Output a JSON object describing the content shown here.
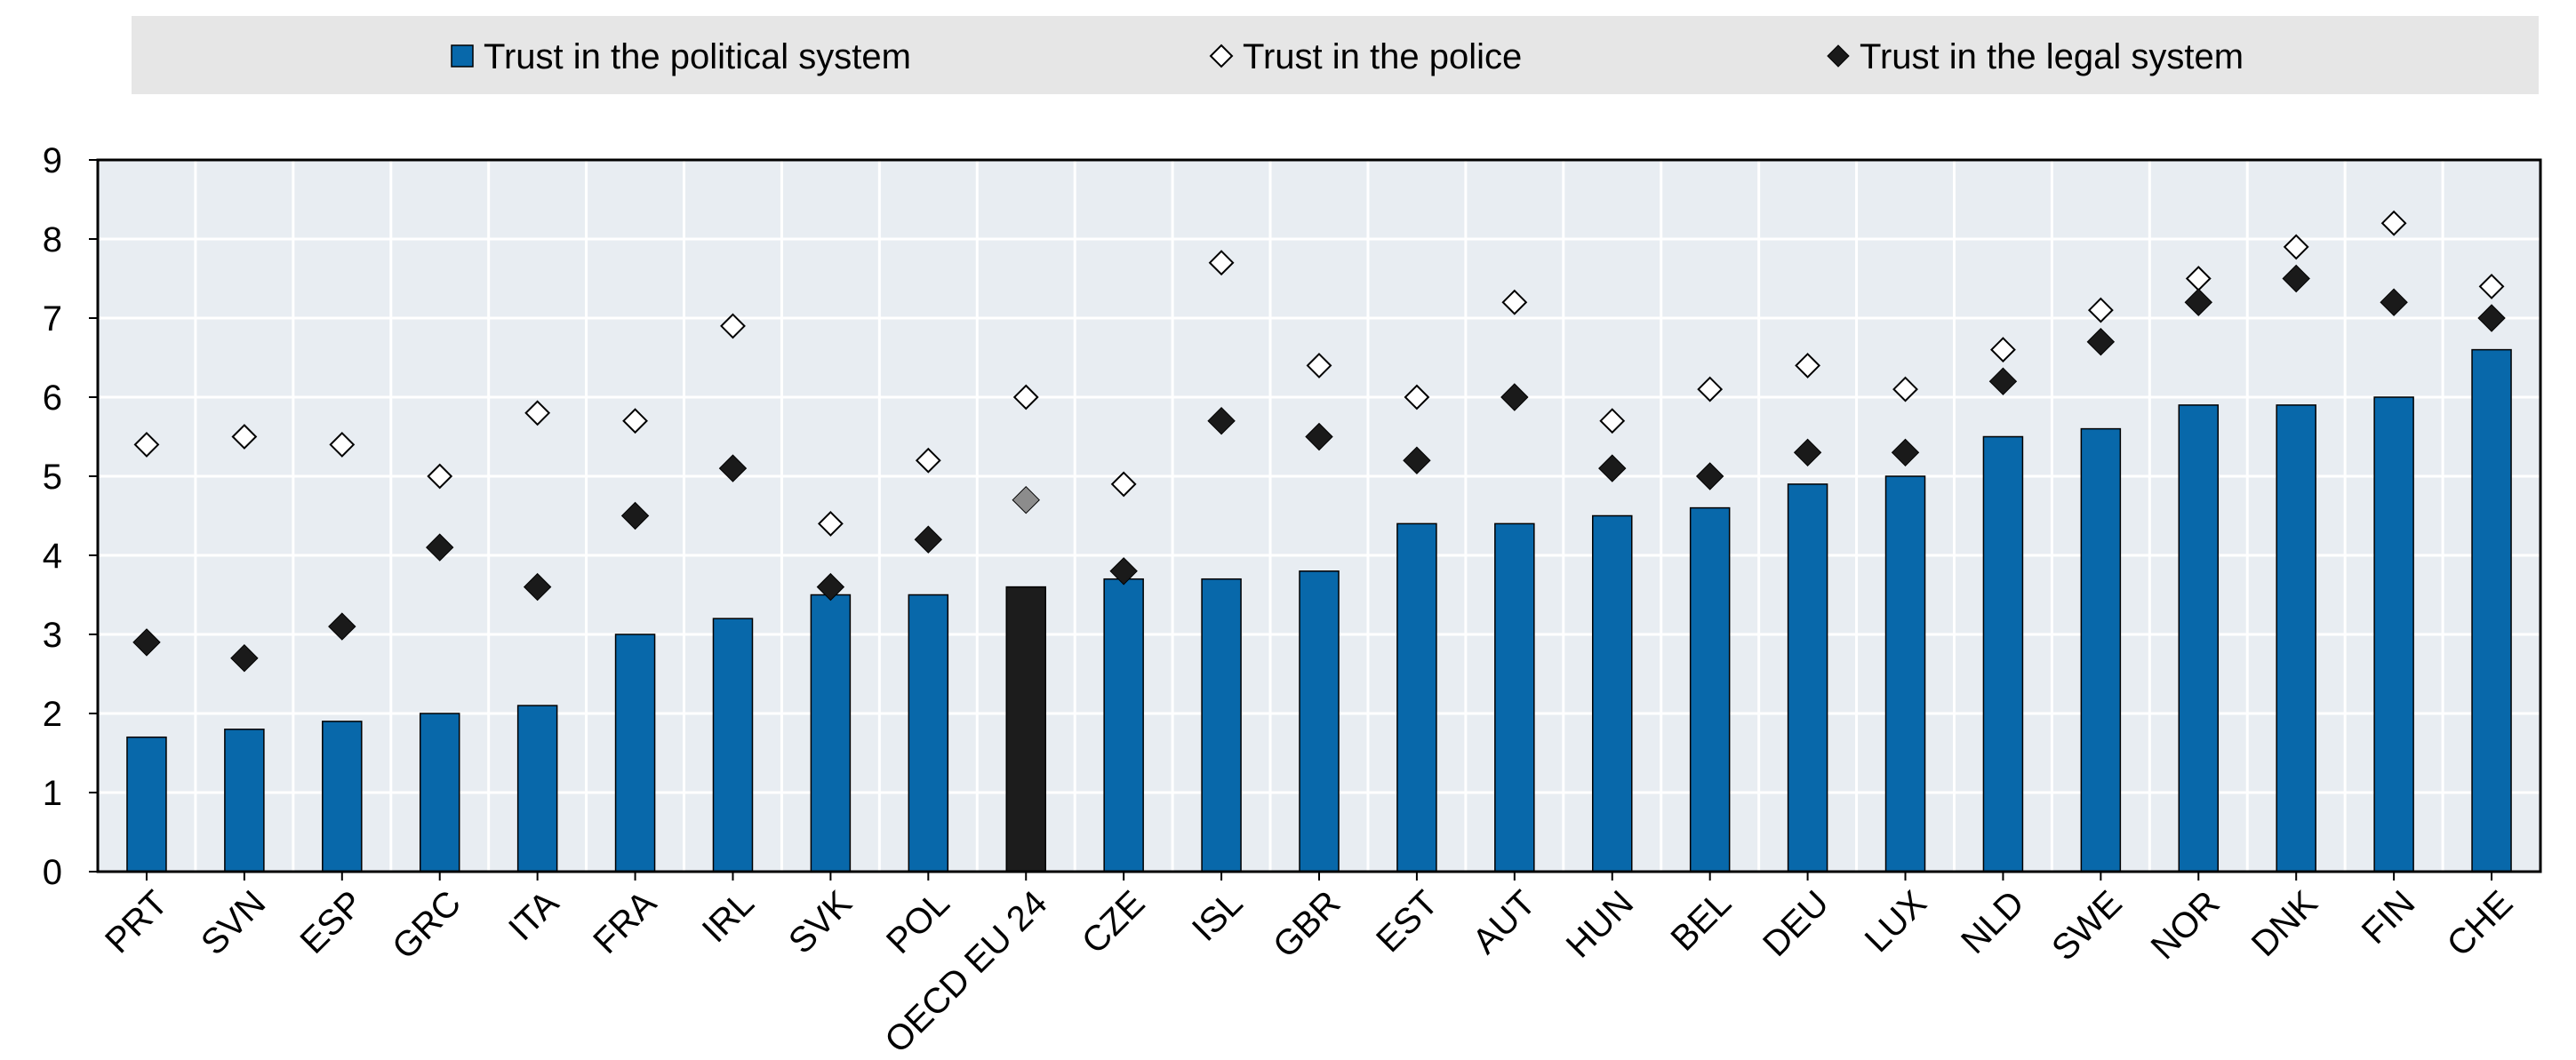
{
  "chart_data": {
    "type": "bar",
    "title": "",
    "xlabel": "",
    "ylabel": "",
    "ylim": [
      0,
      9
    ],
    "yticks": [
      "0",
      "1",
      "2",
      "3",
      "4",
      "5",
      "6",
      "7",
      "8",
      "9"
    ],
    "grid": true,
    "legend_position": "top",
    "categories": [
      "PRT",
      "SVN",
      "ESP",
      "GRC",
      "ITA",
      "FRA",
      "IRL",
      "SVK",
      "POL",
      "OECD EU 24",
      "CZE",
      "ISL",
      "GBR",
      "EST",
      "AUT",
      "HUN",
      "BEL",
      "DEU",
      "LUX",
      "NLD",
      "SWE",
      "NOR",
      "DNK",
      "FIN",
      "CHE"
    ],
    "highlight_category": "OECD EU 24",
    "series": [
      {
        "name": "Trust in the political system",
        "kind": "bar",
        "marker": "square",
        "color": "#0868aa",
        "highlight_color": "#1c1c1c",
        "values": [
          1.7,
          1.8,
          1.9,
          2.0,
          2.1,
          3.0,
          3.2,
          3.5,
          3.5,
          3.6,
          3.7,
          3.7,
          3.8,
          4.4,
          4.4,
          4.5,
          4.6,
          4.9,
          5.0,
          5.5,
          5.6,
          5.9,
          5.9,
          6.0,
          6.6
        ]
      },
      {
        "name": "Trust in the police",
        "kind": "marker",
        "marker": "diamond-open",
        "color": "#000000",
        "highlight_color": "#000000",
        "values": [
          5.4,
          5.5,
          5.4,
          5.0,
          5.8,
          5.7,
          6.9,
          4.4,
          5.2,
          6.0,
          4.9,
          7.7,
          6.4,
          6.0,
          7.2,
          5.7,
          6.1,
          6.4,
          6.1,
          6.6,
          7.1,
          7.5,
          7.9,
          8.2,
          7.4
        ]
      },
      {
        "name": "Trust in the legal system",
        "kind": "marker",
        "marker": "diamond-filled",
        "color": "#1a1a1a",
        "highlight_color": "#8c8c8c",
        "values": [
          2.9,
          2.7,
          3.1,
          4.1,
          3.6,
          4.5,
          5.1,
          3.6,
          4.2,
          4.7,
          3.8,
          5.7,
          5.5,
          5.2,
          6.0,
          5.1,
          5.0,
          5.3,
          5.3,
          6.2,
          6.7,
          7.2,
          7.5,
          7.2,
          7.0
        ]
      }
    ]
  },
  "colors": {
    "plot_background": "#e8edf2",
    "legend_background": "#e6e6e6",
    "gridline": "#ffffff",
    "axis": "#000000"
  }
}
